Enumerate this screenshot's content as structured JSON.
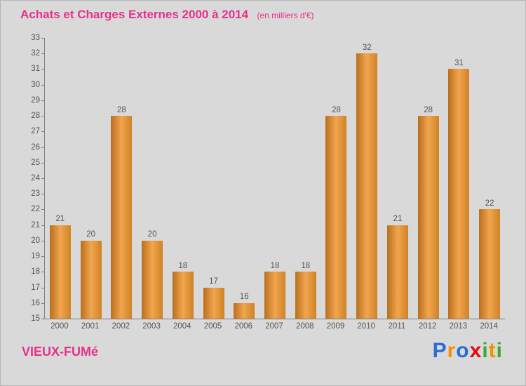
{
  "chart_data": {
    "type": "bar",
    "title": "Achats et Charges Externes 2000 à 2014",
    "subtitle": "(en milliers d'€)",
    "categories": [
      "2000",
      "2001",
      "2002",
      "2003",
      "2004",
      "2005",
      "2006",
      "2007",
      "2008",
      "2009",
      "2010",
      "2011",
      "2012",
      "2013",
      "2014"
    ],
    "values": [
      21,
      20,
      28,
      20,
      18,
      17,
      16,
      18,
      18,
      28,
      32,
      21,
      28,
      31,
      22
    ],
    "xlabel": "",
    "ylabel": "",
    "ylim": [
      15,
      33
    ],
    "ytick_step": 1,
    "grid": false,
    "legend": false,
    "bar_gradient": [
      "#b96f1c",
      "#f2a54e",
      "#cf8226"
    ],
    "value_label_color": "#555555",
    "axis_color": "#808080"
  },
  "colors": {
    "background": "#d9d9d9",
    "title": "#e8308a"
  },
  "footer": {
    "entity": "VIEUX-FUMé",
    "logo_letters": [
      {
        "ch": "P",
        "color": "#2b6bd3"
      },
      {
        "ch": "r",
        "color": "#f39200"
      },
      {
        "ch": "o",
        "color": "#2b6bd3"
      },
      {
        "ch": "x",
        "color": "#e30613"
      },
      {
        "ch": "i",
        "color": "#3aaa35"
      },
      {
        "ch": "t",
        "color": "#f39200"
      },
      {
        "ch": "i",
        "color": "#3aaa35"
      }
    ]
  }
}
